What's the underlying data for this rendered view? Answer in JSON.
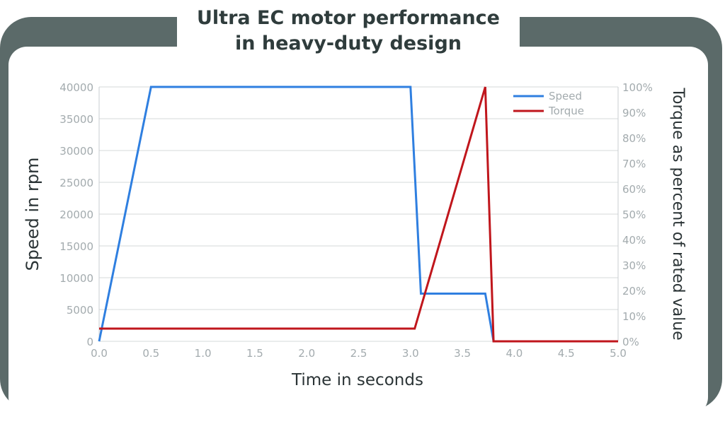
{
  "title_line1": "Ultra EC motor performance",
  "title_line2": "in heavy-duty design",
  "colors": {
    "frame": "#5b6a69",
    "speed": "#2f7fe0",
    "torque": "#c0161c",
    "tick_text": "#a3abae",
    "axis_title": "#2b3436"
  },
  "chart_data": {
    "type": "line",
    "xlabel": "Time in seconds",
    "ylabel": "Speed in rpm",
    "y2label": "Torque as percent of rated value",
    "xlim": [
      0,
      5
    ],
    "ylim": [
      0,
      40000
    ],
    "y2lim": [
      0,
      100
    ],
    "x_ticks": [
      "0.0",
      "0.5",
      "1.0",
      "1.5",
      "2.0",
      "2.5",
      "3.0",
      "3.5",
      "4.0",
      "4.5",
      "5.0"
    ],
    "y_ticks": [
      "0",
      "5000",
      "10000",
      "15000",
      "20000",
      "25000",
      "30000",
      "35000",
      "40000"
    ],
    "y2_ticks": [
      "0%",
      "10%",
      "20%",
      "30%",
      "40%",
      "50%",
      "60%",
      "70%",
      "80%",
      "90%",
      "100%"
    ],
    "grid": true,
    "legend_position": "top-right",
    "series": [
      {
        "name": "Speed",
        "axis": "left",
        "x": [
          0,
          0.5,
          3.0,
          3.1,
          3.72,
          3.8,
          5.0
        ],
        "y": [
          0,
          40000,
          40000,
          7500,
          7500,
          0,
          0
        ]
      },
      {
        "name": "Torque",
        "axis": "right",
        "x": [
          0,
          3.04,
          3.72,
          3.8,
          5.0
        ],
        "y": [
          5,
          5,
          100,
          0,
          0
        ]
      }
    ]
  }
}
